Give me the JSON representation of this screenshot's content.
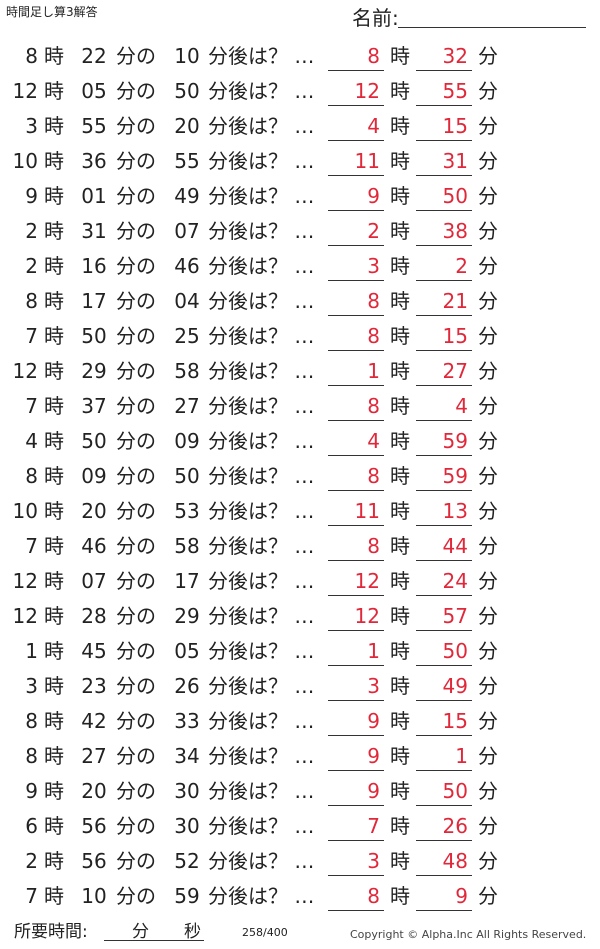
{
  "header": {
    "title": "時間足し算3解答",
    "name_label": "名前:"
  },
  "labels": {
    "hour": "時",
    "min_of": "分の",
    "after": "分後は？ …",
    "ans_hour": "時",
    "ans_min": "分"
  },
  "rows": [
    [
      "8",
      "22",
      "10",
      "8",
      "32"
    ],
    [
      "12",
      "05",
      "50",
      "12",
      "55"
    ],
    [
      "3",
      "55",
      "20",
      "4",
      "15"
    ],
    [
      "10",
      "36",
      "55",
      "11",
      "31"
    ],
    [
      "9",
      "01",
      "49",
      "9",
      "50"
    ],
    [
      "2",
      "31",
      "07",
      "2",
      "38"
    ],
    [
      "2",
      "16",
      "46",
      "3",
      "2"
    ],
    [
      "8",
      "17",
      "04",
      "8",
      "21"
    ],
    [
      "7",
      "50",
      "25",
      "8",
      "15"
    ],
    [
      "12",
      "29",
      "58",
      "1",
      "27"
    ],
    [
      "7",
      "37",
      "27",
      "8",
      "4"
    ],
    [
      "4",
      "50",
      "09",
      "4",
      "59"
    ],
    [
      "8",
      "09",
      "50",
      "8",
      "59"
    ],
    [
      "10",
      "20",
      "53",
      "11",
      "13"
    ],
    [
      "7",
      "46",
      "58",
      "8",
      "44"
    ],
    [
      "12",
      "07",
      "17",
      "12",
      "24"
    ],
    [
      "12",
      "28",
      "29",
      "12",
      "57"
    ],
    [
      "1",
      "45",
      "05",
      "1",
      "50"
    ],
    [
      "3",
      "23",
      "26",
      "3",
      "49"
    ],
    [
      "8",
      "42",
      "33",
      "9",
      "15"
    ],
    [
      "8",
      "27",
      "34",
      "9",
      "1"
    ],
    [
      "9",
      "20",
      "30",
      "9",
      "50"
    ],
    [
      "6",
      "56",
      "30",
      "7",
      "26"
    ],
    [
      "2",
      "56",
      "52",
      "3",
      "48"
    ],
    [
      "7",
      "10",
      "59",
      "8",
      "9"
    ]
  ],
  "footer": {
    "time_label": "所要時間:",
    "min": "分",
    "sec": "秒",
    "page": "258/400",
    "copyright": "Copyright ©  Alpha.Inc All Rights Reserved."
  }
}
